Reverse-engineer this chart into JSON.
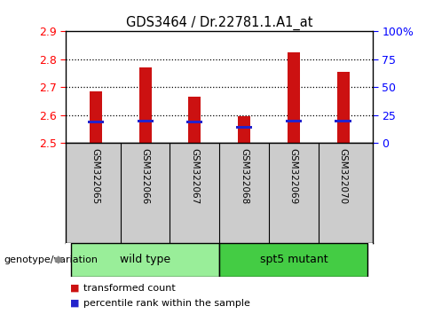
{
  "title": "GDS3464 / Dr.22781.1.A1_at",
  "samples": [
    "GSM322065",
    "GSM322066",
    "GSM322067",
    "GSM322068",
    "GSM322069",
    "GSM322070"
  ],
  "bar_values": [
    2.685,
    2.77,
    2.665,
    2.595,
    2.825,
    2.755
  ],
  "blue_values": [
    2.575,
    2.578,
    2.574,
    2.555,
    2.578,
    2.578
  ],
  "bar_bottom": 2.5,
  "ylim_left": [
    2.5,
    2.9
  ],
  "ylim_right": [
    0,
    100
  ],
  "yticks_left": [
    2.5,
    2.6,
    2.7,
    2.8,
    2.9
  ],
  "yticks_right": [
    0,
    25,
    50,
    75,
    100
  ],
  "ytick_labels_right": [
    "0",
    "25",
    "50",
    "75",
    "100%"
  ],
  "bar_color": "#cc1111",
  "blue_color": "#2222cc",
  "groups": [
    {
      "label": "wild type",
      "samples_count": 3,
      "color": "#99ee99"
    },
    {
      "label": "spt5 mutant",
      "samples_count": 3,
      "color": "#44cc44"
    }
  ],
  "group_starts": [
    0,
    3
  ],
  "legend_items": [
    {
      "color": "#cc1111",
      "label": "transformed count"
    },
    {
      "color": "#2222cc",
      "label": "percentile rank within the sample"
    }
  ],
  "genotype_label": "genotype/variation",
  "tick_area_color": "#cccccc",
  "bar_width": 0.25
}
